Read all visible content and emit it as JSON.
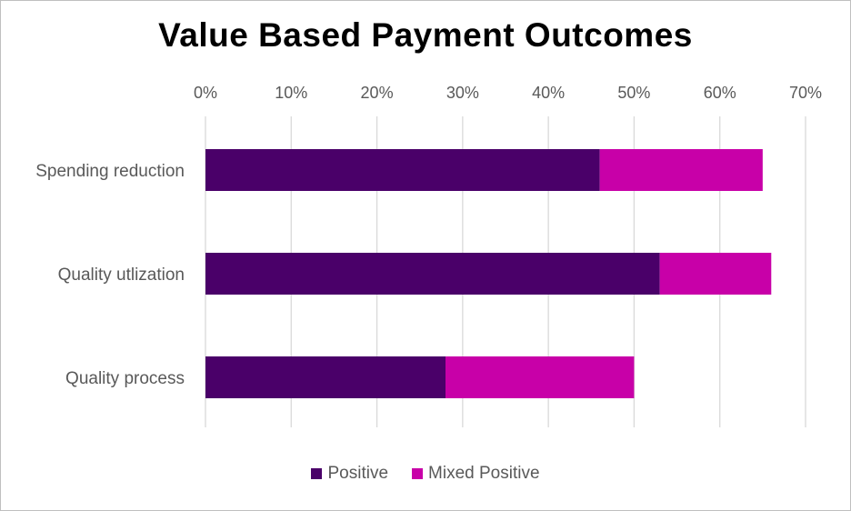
{
  "chart_data": {
    "type": "bar",
    "orientation": "horizontal",
    "stacked": true,
    "title": "Value Based Payment Outcomes",
    "categories": [
      "Spending reduction",
      "Quality utlization",
      "Quality process"
    ],
    "series": [
      {
        "name": "Positive",
        "values": [
          0.46,
          0.53,
          0.28
        ],
        "color": "#4a0069"
      },
      {
        "name": "Mixed Positive",
        "values": [
          0.19,
          0.13,
          0.22
        ],
        "color": "#c800a8"
      }
    ],
    "xlim": [
      0,
      0.7
    ],
    "xticks": [
      0,
      0.1,
      0.2,
      0.3,
      0.4,
      0.5,
      0.6,
      0.7
    ],
    "xtick_labels": [
      "0%",
      "10%",
      "20%",
      "30%",
      "40%",
      "50%",
      "60%",
      "70%"
    ],
    "xaxis_position": "top",
    "grid": "vertical",
    "legend": "bottom-center"
  }
}
